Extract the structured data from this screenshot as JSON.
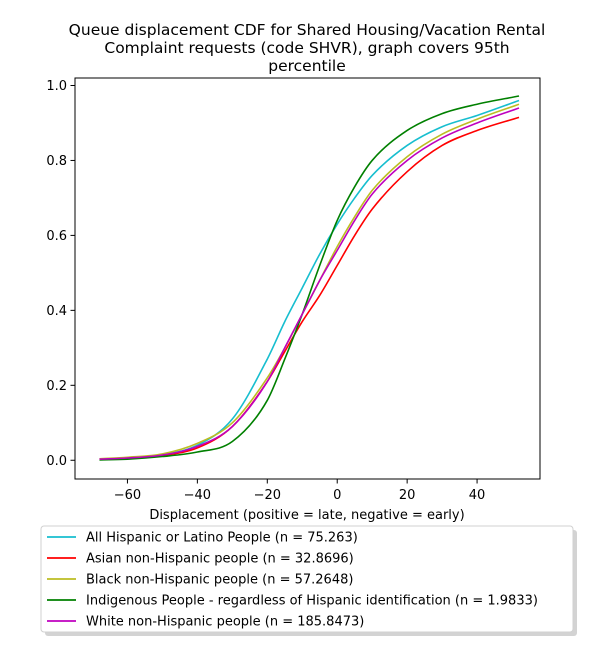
{
  "chart_data": {
    "type": "line",
    "title_lines": [
      "Queue displacement CDF for Shared Housing/Vacation Rental",
      "Complaint  requests (code SHVR), graph covers 95th",
      "percentile"
    ],
    "xlabel": "Displacement (positive = late, negative = early)",
    "ylabel": "",
    "xlim": [
      -75,
      58
    ],
    "ylim": [
      -0.05,
      1.02
    ],
    "x_ticks": [
      -60,
      -40,
      -20,
      0,
      20,
      40
    ],
    "x_tick_labels": [
      "−60",
      "−40",
      "−20",
      "0",
      "20",
      "40"
    ],
    "y_ticks": [
      0.0,
      0.2,
      0.4,
      0.6,
      0.8,
      1.0
    ],
    "y_tick_labels": [
      "0.0",
      "0.2",
      "0.4",
      "0.6",
      "0.8",
      "1.0"
    ],
    "grid": false,
    "legend_position": "below",
    "series": [
      {
        "name": "All Hispanic or Latino People (n = 75.263)",
        "color": "#17becf",
        "x": [
          -68,
          -60,
          -50,
          -40,
          -30,
          -20,
          -15,
          -10,
          -5,
          0,
          5,
          10,
          20,
          30,
          40,
          52
        ],
        "y": [
          0.003,
          0.007,
          0.015,
          0.04,
          0.11,
          0.27,
          0.37,
          0.46,
          0.55,
          0.63,
          0.7,
          0.76,
          0.84,
          0.89,
          0.92,
          0.96
        ]
      },
      {
        "name": "Asian non-Hispanic people (n = 32.8696)",
        "color": "#ff0000",
        "x": [
          -68,
          -60,
          -50,
          -40,
          -30,
          -20,
          -15,
          -10,
          -5,
          0,
          5,
          10,
          20,
          30,
          40,
          52
        ],
        "y": [
          0.003,
          0.006,
          0.013,
          0.033,
          0.09,
          0.21,
          0.29,
          0.37,
          0.44,
          0.52,
          0.6,
          0.67,
          0.77,
          0.84,
          0.88,
          0.915
        ]
      },
      {
        "name": "Black non-Hispanic people (n = 57.2648)",
        "color": "#bcbd22",
        "x": [
          -68,
          -60,
          -50,
          -40,
          -30,
          -20,
          -15,
          -10,
          -5,
          0,
          5,
          10,
          20,
          30,
          40,
          52
        ],
        "y": [
          0.004,
          0.008,
          0.017,
          0.045,
          0.1,
          0.22,
          0.3,
          0.39,
          0.48,
          0.57,
          0.65,
          0.72,
          0.81,
          0.87,
          0.91,
          0.95
        ]
      },
      {
        "name": "Indigenous People - regardless of Hispanic identification (n = 1.9833)",
        "color": "#008000",
        "x": [
          -68,
          -60,
          -50,
          -40,
          -30,
          -20,
          -15,
          -10,
          -5,
          0,
          5,
          10,
          20,
          30,
          40,
          52
        ],
        "y": [
          0.001,
          0.003,
          0.01,
          0.022,
          0.05,
          0.16,
          0.27,
          0.39,
          0.52,
          0.64,
          0.73,
          0.8,
          0.88,
          0.925,
          0.95,
          0.972
        ]
      },
      {
        "name": "White non-Hispanic people (n = 185.8473)",
        "color": "#bf00bf",
        "x": [
          -68,
          -60,
          -50,
          -40,
          -30,
          -20,
          -15,
          -10,
          -5,
          0,
          5,
          10,
          20,
          30,
          40,
          52
        ],
        "y": [
          0.003,
          0.006,
          0.014,
          0.037,
          0.09,
          0.21,
          0.3,
          0.39,
          0.48,
          0.56,
          0.64,
          0.71,
          0.8,
          0.86,
          0.9,
          0.94
        ]
      }
    ]
  }
}
